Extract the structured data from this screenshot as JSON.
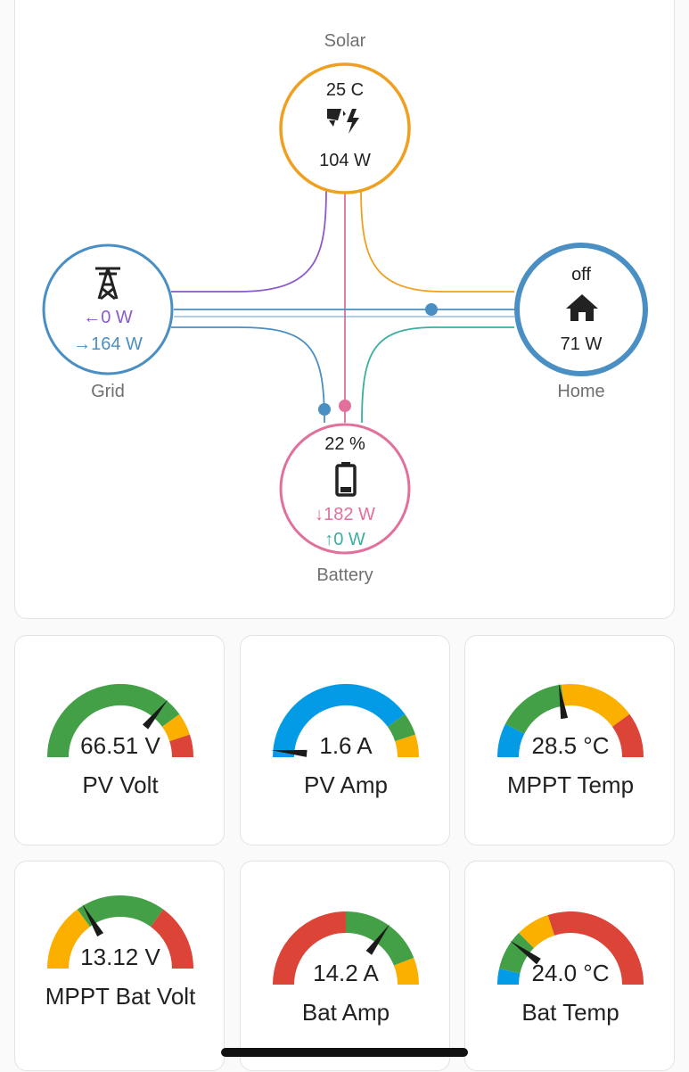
{
  "energy_flow": {
    "solar": {
      "label": "Solar",
      "temp": "25 C",
      "power": "104 W",
      "icon": "solar-power-icon"
    },
    "grid": {
      "label": "Grid",
      "export": "0 W",
      "import": "164 W",
      "icon": "transmission-tower-icon"
    },
    "home": {
      "label": "Home",
      "state": "off",
      "power": "71 W",
      "icon": "home-icon"
    },
    "battery": {
      "label": "Battery",
      "soc": "22 %",
      "charge": "182 W",
      "discharge": "0 W",
      "icon": "battery-icon"
    },
    "arrows": {
      "left": "←",
      "right": "→",
      "down": "↓",
      "up": "↑"
    },
    "colors": {
      "solar": "#f0a020",
      "grid": "#4a8fc4",
      "grid_export": "#8c5ac8",
      "home": "#4a8fc4",
      "battery": "#e2709c",
      "battery_discharge": "#3cae9f"
    }
  },
  "gauges": [
    {
      "id": "pv-volt",
      "name": "PV Volt",
      "value": "66.51 V",
      "needle_fraction": 0.72,
      "segments": [
        {
          "from": 0,
          "to": 0.8,
          "color": "#43a047"
        },
        {
          "from": 0.8,
          "to": 0.9,
          "color": "#fbb000"
        },
        {
          "from": 0.9,
          "to": 1,
          "color": "#db4437"
        }
      ]
    },
    {
      "id": "pv-amp",
      "name": "PV Amp",
      "value": "1.6 A",
      "needle_fraction": 0.03,
      "segments": [
        {
          "from": 0,
          "to": 0.8,
          "color": "#039be5"
        },
        {
          "from": 0.8,
          "to": 0.9,
          "color": "#43a047"
        },
        {
          "from": 0.9,
          "to": 1,
          "color": "#fbb000"
        }
      ]
    },
    {
      "id": "mppt-temp",
      "name": "MPPT Temp",
      "value": "28.5 °C",
      "needle_fraction": 0.45,
      "segments": [
        {
          "from": 0,
          "to": 0.15,
          "color": "#039be5"
        },
        {
          "from": 0.15,
          "to": 0.46,
          "color": "#43a047"
        },
        {
          "from": 0.46,
          "to": 0.8,
          "color": "#fbb000"
        },
        {
          "from": 0.8,
          "to": 1,
          "color": "#db4437"
        }
      ]
    },
    {
      "id": "mppt-bat-volt",
      "name": "MPPT Bat Volt",
      "value": "13.12 V",
      "needle_fraction": 0.33,
      "segments": [
        {
          "from": 0,
          "to": 0.3,
          "color": "#fbb000"
        },
        {
          "from": 0.3,
          "to": 0.7,
          "color": "#43a047"
        },
        {
          "from": 0.7,
          "to": 1,
          "color": "#db4437"
        }
      ]
    },
    {
      "id": "bat-amp",
      "name": "Bat Amp",
      "value": "14.2 A",
      "needle_fraction": 0.7,
      "segments": [
        {
          "from": 0,
          "to": 0.5,
          "color": "#db4437"
        },
        {
          "from": 0.5,
          "to": 0.88,
          "color": "#43a047"
        },
        {
          "from": 0.88,
          "to": 1,
          "color": "#fbb000"
        }
      ]
    },
    {
      "id": "bat-temp",
      "name": "Bat Temp",
      "value": "24.0 °C",
      "needle_fraction": 0.2,
      "segments": [
        {
          "from": 0,
          "to": 0.07,
          "color": "#039be5"
        },
        {
          "from": 0.07,
          "to": 0.25,
          "color": "#43a047"
        },
        {
          "from": 0.25,
          "to": 0.4,
          "color": "#fbb000"
        },
        {
          "from": 0.4,
          "to": 1,
          "color": "#db4437"
        }
      ]
    }
  ]
}
